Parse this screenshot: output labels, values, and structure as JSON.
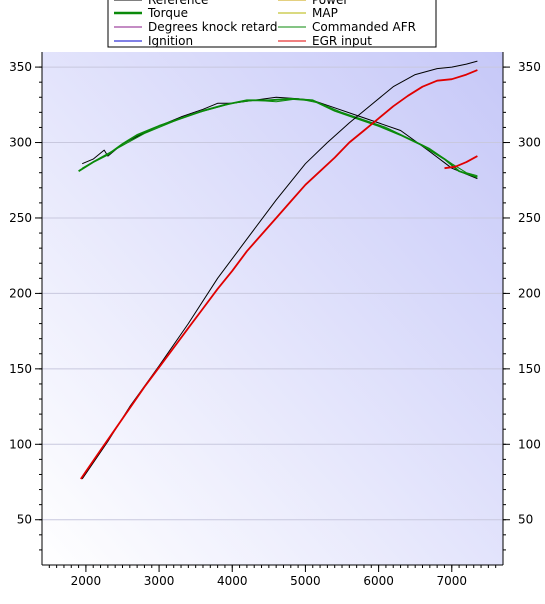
{
  "chart_data": {
    "type": "line",
    "title": "",
    "xlabel": "",
    "ylabel": "",
    "xlim": [
      1400,
      7700
    ],
    "ylim": [
      20,
      360
    ],
    "x_ticks": [
      2000,
      3000,
      4000,
      5000,
      6000,
      7000
    ],
    "y_ticks": [
      50,
      100,
      150,
      200,
      250,
      300,
      350
    ],
    "grid": true,
    "background": {
      "from": "#ffffff",
      "to": "#c6c8f8"
    },
    "legend": {
      "placement": "top",
      "entries": [
        {
          "label": "Reference",
          "color": "#000000"
        },
        {
          "label": "Power",
          "color": "#c8a000"
        },
        {
          "label": "Torque",
          "color": "#0a8a0a"
        },
        {
          "label": "MAP",
          "color": "#b4b400"
        },
        {
          "label": "Degrees knock retard",
          "color": "#8a1a8a"
        },
        {
          "label": "Commanded AFR",
          "color": "#0a8a0a"
        },
        {
          "label": "Ignition",
          "color": "#0000cc"
        },
        {
          "label": "EGR input",
          "color": "#e00000"
        }
      ]
    },
    "series": [
      {
        "name": "Reference",
        "color": "#000000",
        "x": [
          1950,
          2100,
          2200,
          2250,
          2300,
          2500,
          2700,
          3000,
          3300,
          3600,
          3800,
          4000,
          4300,
          4600,
          4900,
          5100,
          5400,
          5700,
          6000,
          6300,
          6500,
          6700,
          7000,
          7200,
          7350
        ],
        "y": [
          286,
          289,
          293,
          295,
          291,
          299,
          304,
          311,
          317,
          322,
          326,
          326,
          328,
          330,
          329,
          328,
          323,
          318,
          313,
          308,
          301,
          294,
          283,
          279,
          276
        ]
      },
      {
        "name": "Torque",
        "color": "#0a8a0a",
        "x": [
          1900,
          2100,
          2300,
          2500,
          2700,
          3000,
          3300,
          3600,
          3900,
          4200,
          4500,
          4800,
          5100,
          5400,
          5700,
          6000,
          6300,
          6600,
          6900,
          7100,
          7350
        ],
        "y": [
          281,
          287,
          292,
          299,
          305,
          311,
          316,
          321,
          325,
          328,
          328,
          329,
          328,
          321,
          316,
          311,
          305,
          298,
          289,
          281,
          277
        ]
      },
      {
        "name": "Commanded AFR",
        "color": "#0a8a0a",
        "x": [
          1950,
          2200,
          2500,
          2800,
          3100,
          3400,
          3700,
          4000,
          4300,
          4600,
          4900,
          5200,
          5500,
          5800,
          6100,
          6400,
          6700,
          7000,
          7200,
          7350
        ],
        "y": [
          283,
          290,
          298,
          306,
          312,
          318,
          322,
          326,
          328,
          327,
          329,
          326,
          320,
          315,
          310,
          303,
          296,
          286,
          280,
          278
        ]
      },
      {
        "name": "Reference",
        "color": "#000000",
        "x": [
          1950,
          2300,
          2600,
          3000,
          3400,
          3800,
          4200,
          4600,
          5000,
          5300,
          5600,
          5900,
          6200,
          6500,
          6800,
          7000,
          7200,
          7350
        ],
        "y": [
          77,
          102,
          125,
          152,
          180,
          210,
          236,
          262,
          286,
          300,
          313,
          325,
          337,
          345,
          349,
          350,
          352,
          354
        ]
      },
      {
        "name": "EGR input",
        "color": "#e00000",
        "x": [
          1930,
          2000,
          2200,
          2400,
          2600,
          2800,
          3000,
          3200,
          3400,
          3600,
          3800,
          4000,
          4200,
          4400,
          4600,
          4800,
          5000,
          5200,
          5400,
          5600,
          5800,
          6000,
          6200,
          6400,
          6600,
          6800,
          7000,
          7200,
          7350
        ],
        "y": [
          77,
          82,
          96,
          110,
          124,
          138,
          151,
          164,
          177,
          190,
          203,
          215,
          228,
          239,
          250,
          261,
          272,
          281,
          290,
          300,
          308,
          316,
          324,
          331,
          337,
          341,
          342,
          345,
          348
        ]
      },
      {
        "name": "EGR input",
        "color": "#e00000",
        "x": [
          6900,
          7050,
          7200,
          7350
        ],
        "y": [
          283,
          284,
          287,
          291
        ]
      }
    ]
  }
}
